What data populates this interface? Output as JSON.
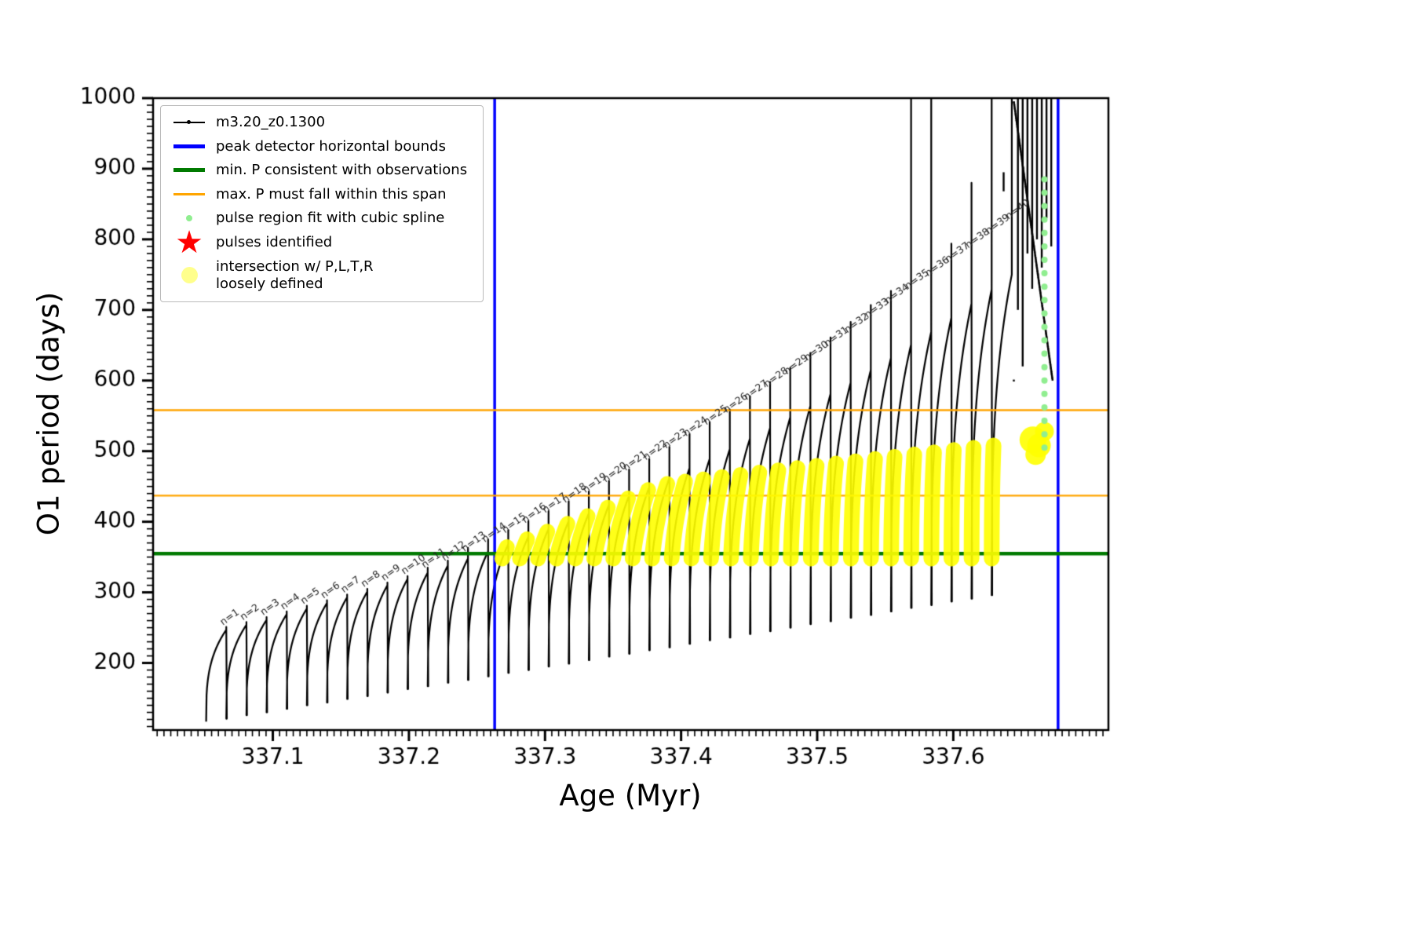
{
  "colors": {
    "background": "#ffffff",
    "series": "#000000",
    "peak_bounds": "#0000ff",
    "min_period_line": "#007a00",
    "max_span_lines": "#ffa500",
    "spline_fit_dots": "#90ee90",
    "pulses_star": "#ff0000",
    "intersection": "#ffff00",
    "axis": "#000000",
    "pulse_label_text": "#222222"
  },
  "icons": {
    "star": "★"
  },
  "legend": {
    "items": [
      {
        "label": "m3.20_z0.1300",
        "marker": "line-dot-black"
      },
      {
        "label": "peak detector horizontal bounds",
        "marker": "thick-line-blue"
      },
      {
        "label": "min. P consistent with observations",
        "marker": "thick-line-green"
      },
      {
        "label": "max. P must fall within this span",
        "marker": "line-orange"
      },
      {
        "label": "pulse region fit with cubic spline",
        "marker": "dot-lightgreen"
      },
      {
        "label": "pulses identified",
        "marker": "star-red"
      },
      {
        "label": "intersection w/ P,L,T,R\nloosely defined",
        "marker": "dot-yellow"
      }
    ]
  },
  "chart_data": {
    "type": "line",
    "title": "",
    "xlabel": "Age (Myr)",
    "ylabel": "O1 period (days)",
    "series_name": "m3.20_z0.1300",
    "xlim": [
      337.012,
      337.714
    ],
    "ylim": [
      105,
      1000
    ],
    "x_major_ticks": [
      337.1,
      337.2,
      337.3,
      337.4,
      337.5,
      337.6
    ],
    "x_minor_step": 0.005,
    "y_major_ticks": [
      200,
      300,
      400,
      500,
      600,
      700,
      800,
      900,
      1000
    ],
    "y_minor_step": 10,
    "grid": false,
    "legend_position": "upper-left",
    "peak_detector_bounds_age": [
      337.263,
      337.677
    ],
    "min_period_line_days": 355,
    "max_period_span_days": [
      437,
      558
    ],
    "pulse_label_prefix": "n=",
    "pulse_width_myr": 0.0148,
    "pulse_rise_exponent": 0.32,
    "pulses_schema": [
      "n",
      "age_peak_myr",
      "trough_period_days",
      "peak_period_days",
      "spike_top_days"
    ],
    "pulses": [
      [
        1,
        337.0658,
        117,
        247,
        251
      ],
      [
        2,
        337.0806,
        121,
        254,
        258
      ],
      [
        3,
        337.0954,
        126,
        261,
        265
      ],
      [
        4,
        337.1102,
        130,
        269,
        273
      ],
      [
        5,
        337.125,
        135,
        277,
        281
      ],
      [
        6,
        337.1398,
        140,
        285,
        289
      ],
      [
        7,
        337.1546,
        144,
        293,
        297
      ],
      [
        8,
        337.1694,
        149,
        301,
        305
      ],
      [
        9,
        337.1842,
        153,
        310,
        314
      ],
      [
        10,
        337.199,
        158,
        319,
        323
      ],
      [
        11,
        337.2138,
        163,
        328,
        335
      ],
      [
        12,
        337.2286,
        167,
        338,
        345
      ],
      [
        13,
        337.2434,
        172,
        348,
        363
      ],
      [
        14,
        337.2582,
        176,
        358,
        375
      ],
      [
        15,
        337.273,
        181,
        368,
        388
      ],
      [
        16,
        337.2878,
        186,
        379,
        401
      ],
      [
        17,
        337.3026,
        190,
        390,
        415
      ],
      [
        18,
        337.3174,
        195,
        401,
        429
      ],
      [
        19,
        337.3322,
        199,
        412,
        443
      ],
      [
        20,
        337.347,
        204,
        424,
        458
      ],
      [
        21,
        337.3618,
        209,
        437,
        474
      ],
      [
        22,
        337.3766,
        213,
        449,
        489
      ],
      [
        23,
        337.3914,
        218,
        462,
        506
      ],
      [
        24,
        337.4062,
        222,
        476,
        524
      ],
      [
        25,
        337.421,
        227,
        489,
        541
      ],
      [
        26,
        337.4358,
        232,
        503,
        559
      ],
      [
        27,
        337.4506,
        236,
        518,
        578
      ],
      [
        28,
        337.4654,
        241,
        533,
        598
      ],
      [
        29,
        337.4802,
        245,
        548,
        618
      ],
      [
        30,
        337.495,
        250,
        564,
        639
      ],
      [
        31,
        337.5098,
        255,
        581,
        661
      ],
      [
        32,
        337.5246,
        259,
        597,
        683
      ],
      [
        33,
        337.5394,
        264,
        615,
        707
      ],
      [
        34,
        337.5542,
        268,
        632,
        727
      ],
      [
        35,
        337.569,
        273,
        651,
        1000
      ],
      [
        36,
        337.5838,
        278,
        669,
        1000
      ],
      [
        37,
        337.5986,
        282,
        689,
        794
      ],
      [
        38,
        337.6134,
        287,
        709,
        880
      ],
      [
        39,
        337.6282,
        291,
        729,
        1000
      ],
      [
        40,
        337.643,
        296,
        750,
        1000
      ]
    ],
    "chaos_spikes_schema": [
      "age_myr",
      "period_low_days",
      "period_high_days"
    ],
    "chaos_spikes": [
      [
        337.637,
        868,
        895
      ],
      [
        337.6475,
        700,
        1000
      ],
      [
        337.651,
        620,
        1000
      ],
      [
        337.6545,
        780,
        1000
      ],
      [
        337.658,
        730,
        1000
      ],
      [
        337.6615,
        800,
        1000
      ],
      [
        337.665,
        760,
        1000
      ],
      [
        337.6685,
        830,
        1000
      ],
      [
        337.672,
        790,
        1000
      ]
    ],
    "spline_dots": {
      "age_myr": 337.667,
      "period_days": [
        505,
        524,
        543,
        562,
        581,
        600,
        619,
        638,
        657,
        676,
        695,
        714,
        733,
        752,
        771,
        790,
        809,
        828,
        847,
        866,
        885
      ]
    },
    "intersection_band": {
      "min_period": 348,
      "cap_base": 428,
      "cap_slope": 3.2,
      "cap_start_n": 15,
      "cap_max": 512
    },
    "intersection_blobs_schema": [
      "age_myr",
      "period_days",
      "radius_px"
    ],
    "intersection_blobs": [
      [
        337.6585,
        516,
        17
      ],
      [
        337.663,
        508,
        15
      ],
      [
        337.667,
        528,
        12
      ],
      [
        337.6605,
        495,
        13
      ]
    ]
  }
}
